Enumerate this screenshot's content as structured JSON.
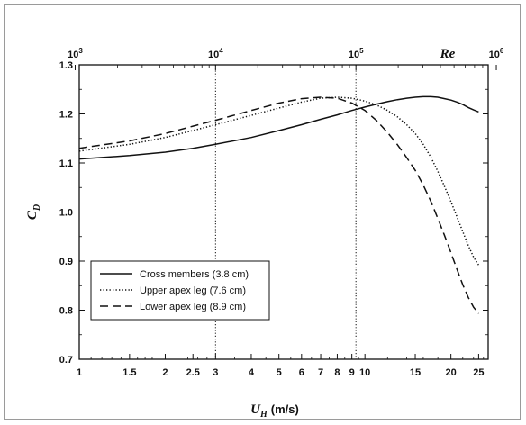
{
  "chart_data": {
    "type": "line",
    "xlabel": {
      "symbol": "U",
      "subscript": "H",
      "unit": "(m/s)"
    },
    "ylabel": {
      "symbol": "C",
      "subscript": "D"
    },
    "x_scale": "log",
    "xlim": [
      1,
      27
    ],
    "ylim": [
      0.7,
      1.3
    ],
    "x_ticks": [
      "1",
      "1.5",
      "2",
      "2.5",
      "3",
      "4",
      "5",
      "6",
      "7",
      "8",
      "9",
      "10",
      "15",
      "20",
      "25"
    ],
    "x_tick_values": [
      1,
      1.5,
      2,
      2.5,
      3,
      4,
      5,
      6,
      7,
      8,
      9,
      10,
      15,
      20,
      25
    ],
    "y_ticks": [
      "0.7",
      "0.8",
      "0.9",
      "1.0",
      "1.1",
      "1.2",
      "1.3"
    ],
    "y_tick_values": [
      0.7,
      0.8,
      0.9,
      1.0,
      1.1,
      1.2,
      1.3
    ],
    "top_axis": {
      "label": "Re",
      "scale": "log",
      "ticks": [
        {
          "base": "10",
          "exp": "3",
          "value": 1000
        },
        {
          "base": "10",
          "exp": "4",
          "value": 10000
        },
        {
          "base": "10",
          "exp": "5",
          "value": 100000
        },
        {
          "base": "10",
          "exp": "6",
          "value": 1000000
        }
      ]
    },
    "reference_lines_x": [
      3,
      9.3
    ],
    "grid": false,
    "legend_position": "bottom-left",
    "series": [
      {
        "name": "Cross members (3.8 cm)",
        "style": "solid",
        "x": [
          1,
          1.5,
          2,
          2.5,
          3,
          4,
          5,
          6,
          7,
          8,
          9,
          10,
          11,
          12,
          13,
          14,
          15,
          16,
          17,
          18,
          19,
          20,
          21,
          22,
          23,
          24,
          25
        ],
        "y": [
          1.108,
          1.115,
          1.122,
          1.13,
          1.138,
          1.152,
          1.166,
          1.178,
          1.189,
          1.198,
          1.207,
          1.214,
          1.22,
          1.225,
          1.229,
          1.232,
          1.234,
          1.235,
          1.235,
          1.234,
          1.231,
          1.228,
          1.224,
          1.219,
          1.213,
          1.208,
          1.204
        ]
      },
      {
        "name": "Upper apex leg (7.6 cm)",
        "style": "dotted",
        "x": [
          1,
          1.5,
          2,
          2.5,
          3,
          4,
          5,
          6,
          7,
          8,
          9,
          10,
          11,
          12,
          13,
          14,
          15,
          16,
          17,
          18,
          19,
          20,
          21,
          22,
          23,
          24,
          25
        ],
        "y": [
          1.124,
          1.138,
          1.152,
          1.166,
          1.178,
          1.197,
          1.212,
          1.224,
          1.232,
          1.234,
          1.232,
          1.226,
          1.218,
          1.207,
          1.194,
          1.178,
          1.16,
          1.138,
          1.112,
          1.083,
          1.052,
          1.021,
          0.99,
          0.96,
          0.932,
          0.908,
          0.892
        ]
      },
      {
        "name": "Lower apex leg (8.9 cm)",
        "style": "dashed",
        "x": [
          1,
          1.5,
          2,
          2.5,
          3,
          4,
          5,
          6,
          7,
          8,
          9,
          10,
          11,
          12,
          13,
          14,
          15,
          16,
          17,
          18,
          19,
          20,
          21,
          22,
          23,
          24,
          25
        ],
        "y": [
          1.13,
          1.145,
          1.16,
          1.175,
          1.187,
          1.207,
          1.222,
          1.231,
          1.234,
          1.232,
          1.222,
          1.207,
          1.186,
          1.162,
          1.137,
          1.111,
          1.085,
          1.055,
          1.022,
          0.987,
          0.952,
          0.917,
          0.883,
          0.852,
          0.826,
          0.806,
          0.793
        ]
      }
    ]
  }
}
